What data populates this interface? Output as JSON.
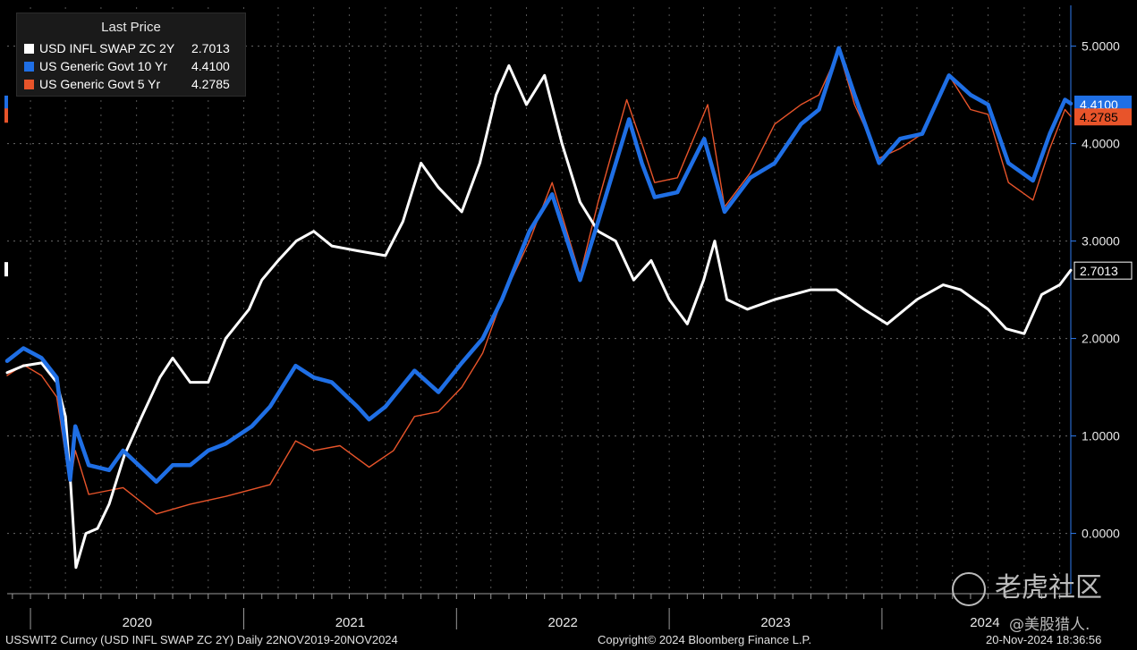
{
  "legend": {
    "title": "Last Price",
    "items": [
      {
        "name": "USD INFL SWAP ZC 2Y",
        "value": "2.7013",
        "color": "#ffffff"
      },
      {
        "name": "US Generic Govt 10 Yr",
        "value": "4.4100",
        "color": "#1f6fe5"
      },
      {
        "name": "US Generic Govt 5 Yr",
        "value": "4.2785",
        "color": "#e8542a"
      }
    ]
  },
  "footer": {
    "left": "USSWIT2 Curncy (USD INFL SWAP ZC 2Y)  Daily 22NOV2019-20NOV2024",
    "center": "Copyright© 2024 Bloomberg Finance L.P.",
    "right": "20-Nov-2024 18:36:56"
  },
  "watermark": {
    "main": "老虎社区",
    "sub": "@美股猎人."
  },
  "chart_data": {
    "type": "line",
    "ylim": [
      -0.6,
      5.4
    ],
    "xlim": [
      "2019-11-22",
      "2024-11-20"
    ],
    "grid": true,
    "y_ticks": [
      "0.0000",
      "1.0000",
      "2.0000",
      "3.0000",
      "4.0000",
      "5.0000"
    ],
    "x_tick_labels": [
      "2020",
      "2021",
      "2022",
      "2023",
      "2024"
    ],
    "last_price_labels": [
      "4.4100",
      "4.2785",
      "2.7013"
    ],
    "series": [
      {
        "name": "USD INFL SWAP ZC 2Y",
        "color": "#ffffff",
        "last": "2.7013",
        "points": [
          [
            "2019-11-22",
            1.65
          ],
          [
            "2019-12-20",
            1.72
          ],
          [
            "2020-01-20",
            1.75
          ],
          [
            "2020-02-15",
            1.55
          ],
          [
            "2020-03-01",
            1.2
          ],
          [
            "2020-03-10",
            0.5
          ],
          [
            "2020-03-19",
            -0.35
          ],
          [
            "2020-04-05",
            0.0
          ],
          [
            "2020-04-25",
            0.05
          ],
          [
            "2020-05-15",
            0.3
          ],
          [
            "2020-06-10",
            0.8
          ],
          [
            "2020-07-10",
            1.2
          ],
          [
            "2020-08-10",
            1.6
          ],
          [
            "2020-09-01",
            1.8
          ],
          [
            "2020-10-01",
            1.55
          ],
          [
            "2020-11-01",
            1.55
          ],
          [
            "2020-12-01",
            2.0
          ],
          [
            "2021-01-10",
            2.3
          ],
          [
            "2021-02-01",
            2.6
          ],
          [
            "2021-03-01",
            2.8
          ],
          [
            "2021-04-01",
            3.0
          ],
          [
            "2021-05-01",
            3.1
          ],
          [
            "2021-06-01",
            2.95
          ],
          [
            "2021-07-15",
            2.9
          ],
          [
            "2021-09-01",
            2.85
          ],
          [
            "2021-10-01",
            3.2
          ],
          [
            "2021-11-01",
            3.8
          ],
          [
            "2021-12-01",
            3.55
          ],
          [
            "2022-01-10",
            3.3
          ],
          [
            "2022-02-10",
            3.8
          ],
          [
            "2022-03-10",
            4.5
          ],
          [
            "2022-04-01",
            4.8
          ],
          [
            "2022-05-01",
            4.4
          ],
          [
            "2022-06-01",
            4.7
          ],
          [
            "2022-07-01",
            4.0
          ],
          [
            "2022-08-01",
            3.4
          ],
          [
            "2022-09-01",
            3.1
          ],
          [
            "2022-10-01",
            3.0
          ],
          [
            "2022-11-01",
            2.6
          ],
          [
            "2022-12-01",
            2.8
          ],
          [
            "2023-01-01",
            2.4
          ],
          [
            "2023-02-01",
            2.15
          ],
          [
            "2023-03-01",
            2.6
          ],
          [
            "2023-03-20",
            3.0
          ],
          [
            "2023-04-10",
            2.4
          ],
          [
            "2023-05-15",
            2.3
          ],
          [
            "2023-07-01",
            2.4
          ],
          [
            "2023-09-01",
            2.5
          ],
          [
            "2023-10-15",
            2.5
          ],
          [
            "2023-12-01",
            2.3
          ],
          [
            "2024-01-10",
            2.15
          ],
          [
            "2024-03-01",
            2.4
          ],
          [
            "2024-04-15",
            2.55
          ],
          [
            "2024-05-15",
            2.5
          ],
          [
            "2024-07-01",
            2.3
          ],
          [
            "2024-08-01",
            2.1
          ],
          [
            "2024-09-01",
            2.05
          ],
          [
            "2024-10-01",
            2.45
          ],
          [
            "2024-11-01",
            2.55
          ],
          [
            "2024-11-20",
            2.7013
          ]
        ]
      },
      {
        "name": "US Generic Govt 10 Yr",
        "color": "#1f6fe5",
        "last": "4.4100",
        "points": [
          [
            "2019-11-22",
            1.77
          ],
          [
            "2019-12-20",
            1.9
          ],
          [
            "2020-01-20",
            1.8
          ],
          [
            "2020-02-15",
            1.6
          ],
          [
            "2020-03-09",
            0.55
          ],
          [
            "2020-03-18",
            1.1
          ],
          [
            "2020-04-10",
            0.7
          ],
          [
            "2020-05-15",
            0.65
          ],
          [
            "2020-06-08",
            0.85
          ],
          [
            "2020-08-04",
            0.53
          ],
          [
            "2020-09-01",
            0.7
          ],
          [
            "2020-10-01",
            0.7
          ],
          [
            "2020-11-01",
            0.85
          ],
          [
            "2020-12-01",
            0.92
          ],
          [
            "2021-01-15",
            1.1
          ],
          [
            "2021-02-15",
            1.3
          ],
          [
            "2021-03-31",
            1.72
          ],
          [
            "2021-05-01",
            1.6
          ],
          [
            "2021-06-01",
            1.55
          ],
          [
            "2021-07-15",
            1.3
          ],
          [
            "2021-08-04",
            1.17
          ],
          [
            "2021-09-01",
            1.3
          ],
          [
            "2021-10-21",
            1.67
          ],
          [
            "2021-12-01",
            1.45
          ],
          [
            "2022-01-10",
            1.75
          ],
          [
            "2022-02-15",
            2.0
          ],
          [
            "2022-03-20",
            2.4
          ],
          [
            "2022-05-06",
            3.1
          ],
          [
            "2022-06-14",
            3.48
          ],
          [
            "2022-08-01",
            2.6
          ],
          [
            "2022-09-01",
            3.2
          ],
          [
            "2022-10-24",
            4.25
          ],
          [
            "2022-11-15",
            3.8
          ],
          [
            "2022-12-07",
            3.45
          ],
          [
            "2023-01-15",
            3.5
          ],
          [
            "2023-03-02",
            4.05
          ],
          [
            "2023-04-06",
            3.3
          ],
          [
            "2023-05-20",
            3.65
          ],
          [
            "2023-07-01",
            3.8
          ],
          [
            "2023-08-15",
            4.2
          ],
          [
            "2023-09-15",
            4.35
          ],
          [
            "2023-10-19",
            4.98
          ],
          [
            "2023-11-15",
            4.5
          ],
          [
            "2023-12-27",
            3.8
          ],
          [
            "2024-02-01",
            4.05
          ],
          [
            "2024-03-10",
            4.1
          ],
          [
            "2024-04-25",
            4.7
          ],
          [
            "2024-06-01",
            4.5
          ],
          [
            "2024-07-01",
            4.4
          ],
          [
            "2024-08-05",
            3.8
          ],
          [
            "2024-09-16",
            3.62
          ],
          [
            "2024-10-15",
            4.1
          ],
          [
            "2024-11-10",
            4.45
          ],
          [
            "2024-11-20",
            4.41
          ]
        ]
      },
      {
        "name": "US Generic Govt 5 Yr",
        "color": "#e8542a",
        "last": "4.2785",
        "points": [
          [
            "2019-11-22",
            1.62
          ],
          [
            "2019-12-20",
            1.73
          ],
          [
            "2020-01-20",
            1.62
          ],
          [
            "2020-02-15",
            1.4
          ],
          [
            "2020-03-09",
            0.5
          ],
          [
            "2020-03-18",
            0.85
          ],
          [
            "2020-04-10",
            0.4
          ],
          [
            "2020-06-08",
            0.47
          ],
          [
            "2020-08-04",
            0.2
          ],
          [
            "2020-10-01",
            0.3
          ],
          [
            "2020-12-01",
            0.38
          ],
          [
            "2021-02-15",
            0.5
          ],
          [
            "2021-03-31",
            0.95
          ],
          [
            "2021-05-01",
            0.85
          ],
          [
            "2021-06-15",
            0.9
          ],
          [
            "2021-08-04",
            0.68
          ],
          [
            "2021-09-15",
            0.85
          ],
          [
            "2021-10-21",
            1.2
          ],
          [
            "2021-12-01",
            1.25
          ],
          [
            "2022-01-10",
            1.5
          ],
          [
            "2022-02-15",
            1.85
          ],
          [
            "2022-03-20",
            2.4
          ],
          [
            "2022-05-06",
            3.0
          ],
          [
            "2022-06-14",
            3.6
          ],
          [
            "2022-08-01",
            2.65
          ],
          [
            "2022-09-01",
            3.4
          ],
          [
            "2022-10-20",
            4.45
          ],
          [
            "2022-11-15",
            4.0
          ],
          [
            "2022-12-07",
            3.6
          ],
          [
            "2023-01-15",
            3.65
          ],
          [
            "2023-03-08",
            4.4
          ],
          [
            "2023-04-06",
            3.35
          ],
          [
            "2023-05-20",
            3.7
          ],
          [
            "2023-07-01",
            4.2
          ],
          [
            "2023-08-15",
            4.4
          ],
          [
            "2023-09-15",
            4.5
          ],
          [
            "2023-10-19",
            4.95
          ],
          [
            "2023-11-15",
            4.4
          ],
          [
            "2023-12-27",
            3.85
          ],
          [
            "2024-02-01",
            3.95
          ],
          [
            "2024-03-10",
            4.1
          ],
          [
            "2024-04-25",
            4.7
          ],
          [
            "2024-06-01",
            4.35
          ],
          [
            "2024-07-01",
            4.3
          ],
          [
            "2024-08-05",
            3.6
          ],
          [
            "2024-09-16",
            3.42
          ],
          [
            "2024-10-15",
            3.95
          ],
          [
            "2024-11-10",
            4.35
          ],
          [
            "2024-11-20",
            4.2785
          ]
        ]
      }
    ]
  }
}
